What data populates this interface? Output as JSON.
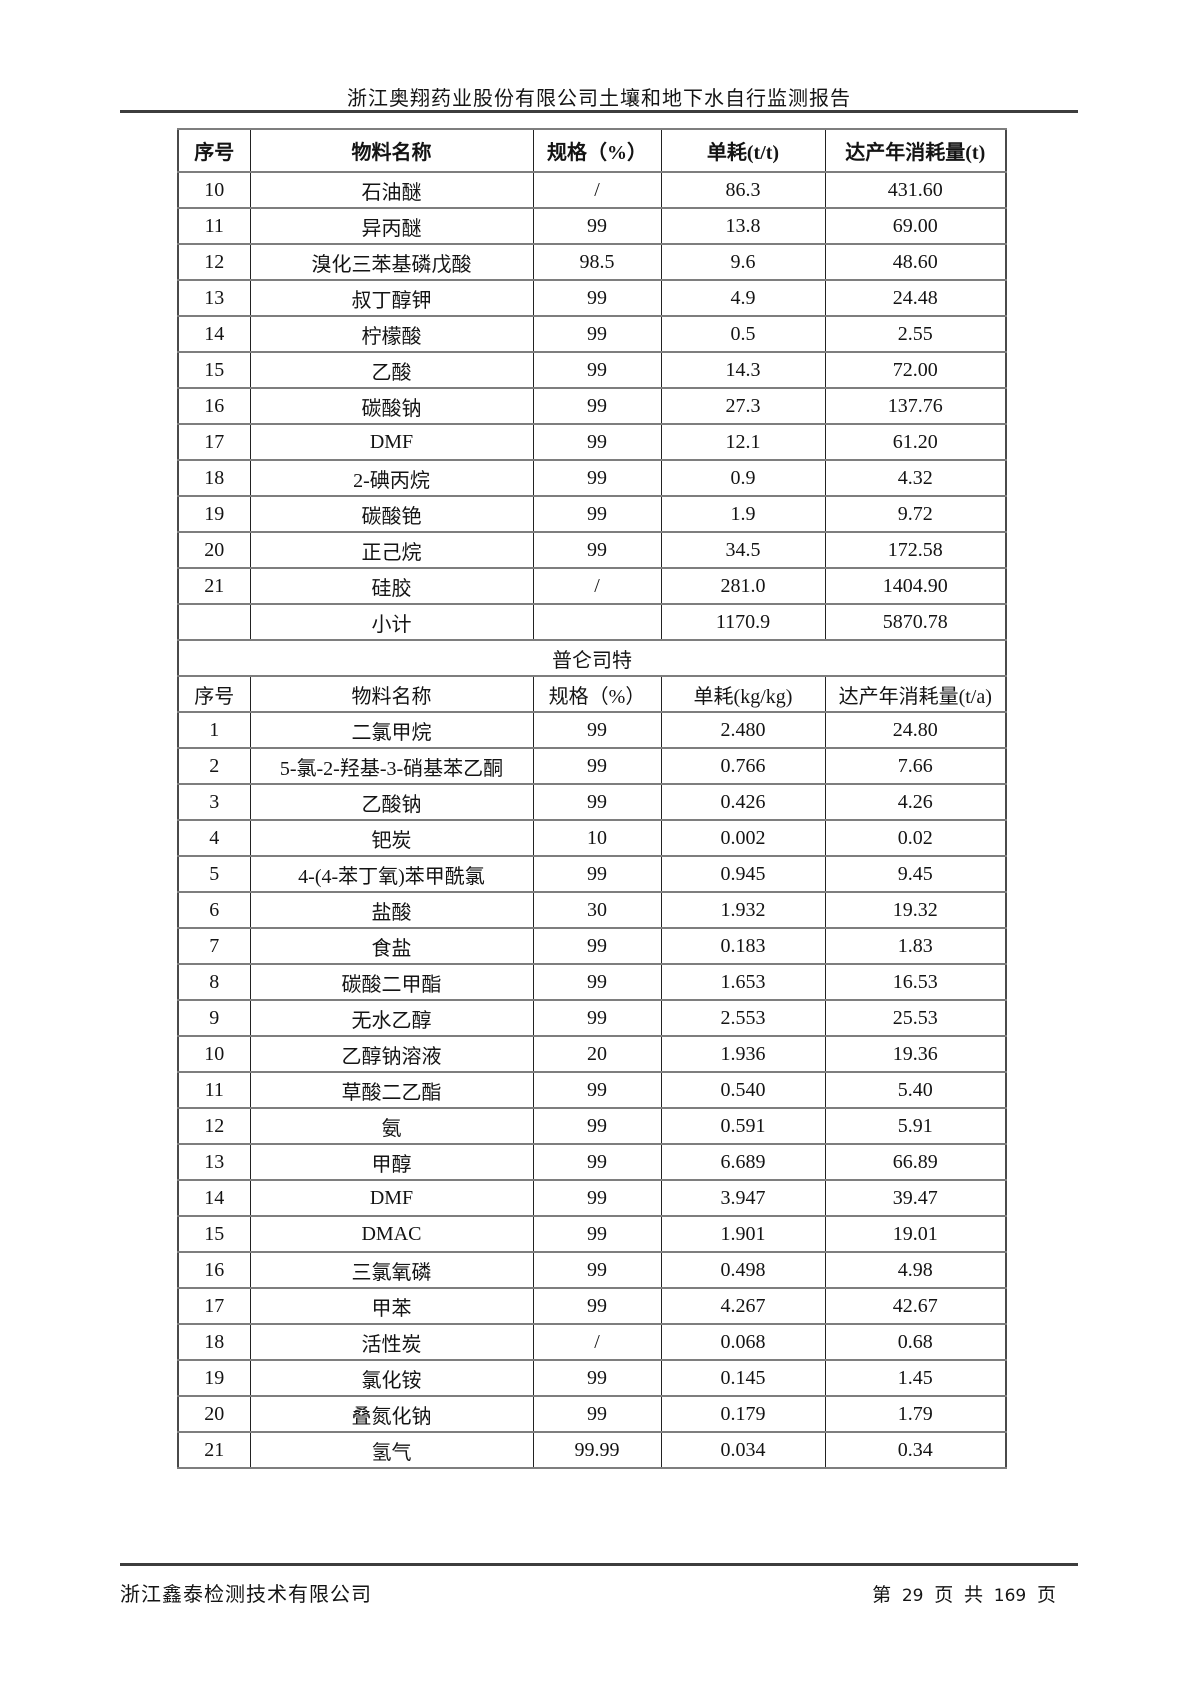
{
  "header": {
    "title": "浙江奥翔药业股份有限公司土壤和地下水自行监测报告"
  },
  "table1": {
    "headers": [
      "序号",
      "物料名称",
      "规格（%）",
      "单耗(t/t)",
      "达产年消耗量(t)"
    ],
    "rows": [
      [
        "10",
        "石油醚",
        "/",
        "86.3",
        "431.60"
      ],
      [
        "11",
        "异丙醚",
        "99",
        "13.8",
        "69.00"
      ],
      [
        "12",
        "溴化三苯基磷戊酸",
        "98.5",
        "9.6",
        "48.60"
      ],
      [
        "13",
        "叔丁醇钾",
        "99",
        "4.9",
        "24.48"
      ],
      [
        "14",
        "柠檬酸",
        "99",
        "0.5",
        "2.55"
      ],
      [
        "15",
        "乙酸",
        "99",
        "14.3",
        "72.00"
      ],
      [
        "16",
        "碳酸钠",
        "99",
        "27.3",
        "137.76"
      ],
      [
        "17",
        "DMF",
        "99",
        "12.1",
        "61.20"
      ],
      [
        "18",
        "2-碘丙烷",
        "99",
        "0.9",
        "4.32"
      ],
      [
        "19",
        "碳酸铯",
        "99",
        "1.9",
        "9.72"
      ],
      [
        "20",
        "正己烷",
        "99",
        "34.5",
        "172.58"
      ],
      [
        "21",
        "硅胶",
        "/",
        "281.0",
        "1404.90"
      ]
    ],
    "subtotal_row": [
      "",
      "小计",
      "",
      "1170.9",
      "5870.78"
    ]
  },
  "section_title": "普仑司特",
  "table2": {
    "headers": [
      "序号",
      "物料名称",
      "规格（%）",
      "单耗(kg/kg)",
      "达产年消耗量(t/a)"
    ],
    "rows": [
      [
        "1",
        "二氯甲烷",
        "99",
        "2.480",
        "24.80"
      ],
      [
        "2",
        "5-氯-2-羟基-3-硝基苯乙酮",
        "99",
        "0.766",
        "7.66"
      ],
      [
        "3",
        "乙酸钠",
        "99",
        "0.426",
        "4.26"
      ],
      [
        "4",
        "钯炭",
        "10",
        "0.002",
        "0.02"
      ],
      [
        "5",
        "4-(4-苯丁氧)苯甲酰氯",
        "99",
        "0.945",
        "9.45"
      ],
      [
        "6",
        "盐酸",
        "30",
        "1.932",
        "19.32"
      ],
      [
        "7",
        "食盐",
        "99",
        "0.183",
        "1.83"
      ],
      [
        "8",
        "碳酸二甲酯",
        "99",
        "1.653",
        "16.53"
      ],
      [
        "9",
        "无水乙醇",
        "99",
        "2.553",
        "25.53"
      ],
      [
        "10",
        "乙醇钠溶液",
        "20",
        "1.936",
        "19.36"
      ],
      [
        "11",
        "草酸二乙酯",
        "99",
        "0.540",
        "5.40"
      ],
      [
        "12",
        "氨",
        "99",
        "0.591",
        "5.91"
      ],
      [
        "13",
        "甲醇",
        "99",
        "6.689",
        "66.89"
      ],
      [
        "14",
        "DMF",
        "99",
        "3.947",
        "39.47"
      ],
      [
        "15",
        "DMAC",
        "99",
        "1.901",
        "19.01"
      ],
      [
        "16",
        "三氯氧磷",
        "99",
        "0.498",
        "4.98"
      ],
      [
        "17",
        "甲苯",
        "99",
        "4.267",
        "42.67"
      ],
      [
        "18",
        "活性炭",
        "/",
        "0.068",
        "0.68"
      ],
      [
        "19",
        "氯化铵",
        "99",
        "0.145",
        "1.45"
      ],
      [
        "20",
        "叠氮化钠",
        "99",
        "0.179",
        "1.79"
      ],
      [
        "21",
        "氢气",
        "99.99",
        "0.034",
        "0.34"
      ]
    ]
  },
  "footer": {
    "company": "浙江鑫泰检测技术有限公司",
    "page_info": {
      "prefix": "第",
      "current": "29",
      "middle1": "页",
      "middle2": "共",
      "total": "169",
      "suffix": "页"
    }
  }
}
